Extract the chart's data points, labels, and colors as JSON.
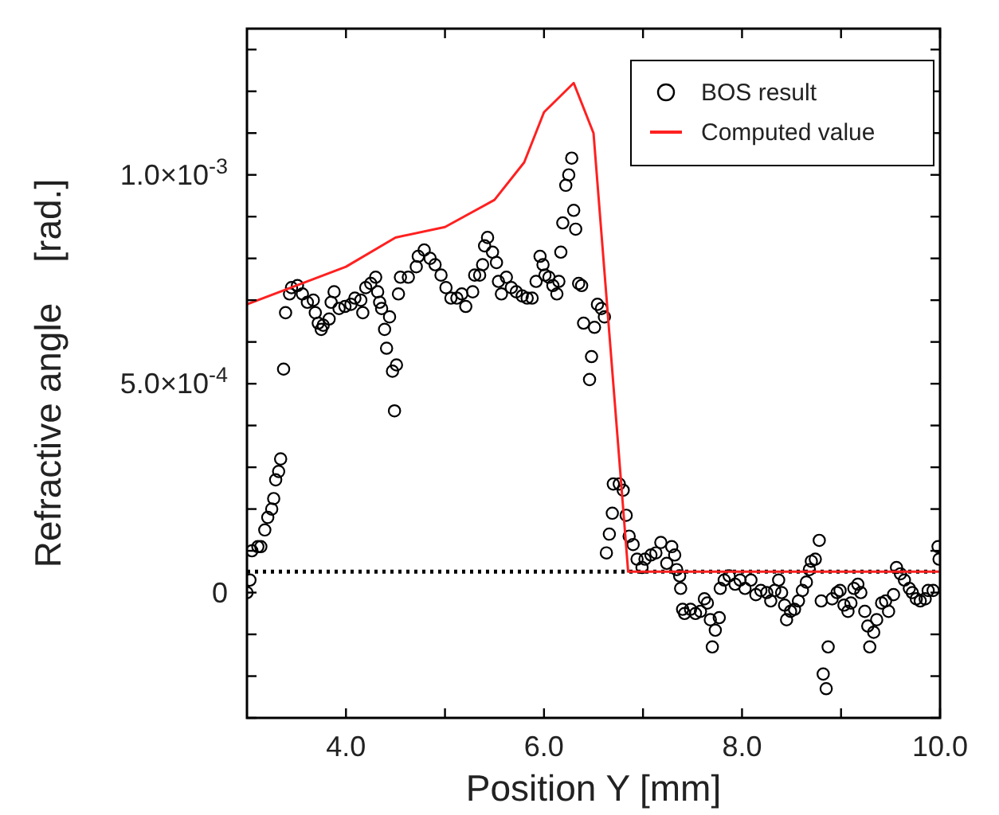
{
  "chart_data": {
    "type": "scatter",
    "xlabel": "Position Y [mm]",
    "ylabel": "Refractive angle    [rad.]",
    "xlim": [
      3,
      10
    ],
    "ylim": [
      -0.0003,
      0.00135
    ],
    "xticks": [
      {
        "value": 4,
        "label": "4.0"
      },
      {
        "value": 5,
        "label": null
      },
      {
        "value": 6,
        "label": "6.0"
      },
      {
        "value": 7,
        "label": null
      },
      {
        "value": 8,
        "label": "8.0"
      },
      {
        "value": 9,
        "label": null
      },
      {
        "value": 10,
        "label": "10.0"
      }
    ],
    "yticks": [
      {
        "value": -0.0003,
        "label": null
      },
      {
        "value": -0.0002,
        "label": null
      },
      {
        "value": -0.0001,
        "label": null
      },
      0,
      {
        "value": 0.0001,
        "label": null
      },
      {
        "value": 0.0002,
        "label": null
      },
      {
        "value": 0.0003,
        "label": null
      },
      {
        "value": 0.0004,
        "label": null
      },
      {
        "value": 0.0005,
        "label": "5.0×10$^{-4}$"
      },
      {
        "value": 0.0006,
        "label": null
      },
      {
        "value": 0.0007,
        "label": null
      },
      {
        "value": 0.0008,
        "label": null
      },
      {
        "value": 0.0009,
        "label": null
      },
      {
        "value": 0.001,
        "label": "1.0×10$^{-3}$"
      },
      {
        "value": 0.0011,
        "label": null
      },
      {
        "value": 0.0012,
        "label": null
      },
      {
        "value": 0.0013,
        "label": null
      }
    ],
    "legend": "top right",
    "grid": false,
    "ref_lines": [
      {
        "axis": "y",
        "value": 5e-05,
        "color": "#000000",
        "line_style": "dotted"
      }
    ],
    "series": [
      {
        "name": "BOS result",
        "marker": "circle",
        "color": "#000000",
        "x": [
          3.0,
          3.03,
          3.05,
          3.11,
          3.14,
          3.18,
          3.21,
          3.25,
          3.27,
          3.29,
          3.32,
          3.34,
          3.37,
          3.39,
          3.43,
          3.45,
          3.51,
          3.56,
          3.61,
          3.67,
          3.69,
          3.72,
          3.75,
          3.77,
          3.83,
          3.85,
          3.88,
          3.93,
          3.99,
          4.05,
          4.09,
          4.15,
          4.17,
          4.2,
          4.25,
          4.3,
          4.32,
          4.34,
          4.36,
          4.39,
          4.41,
          4.44,
          4.47,
          4.49,
          4.51,
          4.53,
          4.55,
          4.63,
          4.71,
          4.73,
          4.79,
          4.85,
          4.9,
          4.96,
          5.01,
          5.06,
          5.12,
          5.17,
          5.21,
          5.28,
          5.3,
          5.35,
          5.38,
          5.4,
          5.43,
          5.48,
          5.52,
          5.54,
          5.57,
          5.62,
          5.67,
          5.72,
          5.78,
          5.83,
          5.88,
          5.92,
          5.96,
          5.99,
          6.01,
          6.05,
          6.09,
          6.13,
          6.15,
          6.17,
          6.19,
          6.22,
          6.25,
          6.28,
          6.3,
          6.32,
          6.35,
          6.38,
          6.4,
          6.46,
          6.48,
          6.51,
          6.54,
          6.58,
          6.61,
          6.63,
          6.66,
          6.69,
          6.7,
          6.76,
          6.8,
          6.83,
          6.86,
          6.9,
          6.94,
          6.99,
          7.02,
          7.08,
          7.13,
          7.18,
          7.24,
          7.29,
          7.32,
          7.34,
          7.37,
          7.38,
          7.4,
          7.42,
          7.48,
          7.53,
          7.58,
          7.62,
          7.65,
          7.68,
          7.7,
          7.73,
          7.77,
          7.78,
          7.82,
          7.87,
          7.93,
          7.98,
          8.03,
          8.09,
          8.14,
          8.19,
          8.25,
          8.29,
          8.33,
          8.37,
          8.4,
          8.43,
          8.45,
          8.49,
          8.53,
          8.57,
          8.61,
          8.65,
          8.68,
          8.7,
          8.74,
          8.78,
          8.8,
          8.82,
          8.85,
          8.87,
          8.91,
          8.96,
          8.99,
          9.03,
          9.07,
          9.1,
          9.13,
          9.17,
          9.2,
          9.24,
          9.27,
          9.29,
          9.33,
          9.36,
          9.41,
          9.45,
          9.48,
          9.53,
          9.56,
          9.6,
          9.64,
          9.69,
          9.72,
          9.76,
          9.8,
          9.85,
          9.88,
          9.93,
          9.98,
          9.99
        ],
        "values": [
          0,
          3e-05,
          0.0001,
          0.00011,
          0.00011,
          0.00015,
          0.00018,
          0.0002,
          0.000225,
          0.00027,
          0.00029,
          0.00032,
          0.000535,
          0.00067,
          0.000715,
          0.00073,
          0.000735,
          0.000715,
          0.000695,
          0.0007,
          0.00067,
          0.000645,
          0.00063,
          0.00064,
          0.000655,
          0.000695,
          0.00072,
          0.00068,
          0.000685,
          0.00069,
          0.000705,
          0.0007,
          0.00067,
          0.00073,
          0.00074,
          0.000755,
          0.00072,
          0.000695,
          0.00068,
          0.00063,
          0.000585,
          0.00066,
          0.00053,
          0.000435,
          0.000545,
          0.000715,
          0.000755,
          0.000755,
          0.00078,
          0.000805,
          0.00082,
          0.0008,
          0.000785,
          0.00076,
          0.00073,
          0.000705,
          0.000705,
          0.000715,
          0.000685,
          0.00072,
          0.00076,
          0.00076,
          0.000785,
          0.00083,
          0.00085,
          0.000815,
          0.00079,
          0.000745,
          0.000715,
          0.000755,
          0.00073,
          0.00072,
          0.00071,
          0.000705,
          0.000705,
          0.000745,
          0.000805,
          0.000785,
          0.00076,
          0.000755,
          0.000735,
          0.000715,
          0.000745,
          0.000815,
          0.000885,
          0.000975,
          0.001,
          0.00104,
          0.000915,
          0.00087,
          0.00074,
          0.000735,
          0.000645,
          0.00051,
          0.000565,
          0.000635,
          0.00069,
          0.00068,
          0.00066,
          9.5e-05,
          0.00014,
          0.00019,
          0.00026,
          0.00026,
          0.000245,
          0.000185,
          0.000135,
          0.000115,
          8e-05,
          6e-05,
          8e-05,
          9e-05,
          9.5e-05,
          0.00012,
          7e-05,
          0.00011,
          9e-05,
          5.5e-05,
          4e-05,
          1e-05,
          -4e-05,
          -5e-05,
          -4e-05,
          -5e-05,
          -4.5e-05,
          -1.5e-05,
          -2.5e-05,
          -6.5e-05,
          -0.00013,
          -9e-05,
          -6e-05,
          1e-05,
          3e-05,
          4e-05,
          2e-05,
          3e-05,
          1e-05,
          3e-05,
          -5e-06,
          5e-06,
          0,
          -2e-05,
          5e-06,
          3e-05,
          0,
          -3e-05,
          -6.5e-05,
          -4.5e-05,
          -4e-05,
          -2e-05,
          5e-06,
          2.5e-05,
          5.5e-05,
          7.5e-05,
          8e-05,
          0.000125,
          -2e-05,
          -0.000195,
          -0.00023,
          -0.00013,
          -1.5e-05,
          0,
          5e-06,
          -3e-05,
          -4.5e-05,
          -2.5e-05,
          1e-05,
          2e-05,
          0,
          -4.5e-05,
          -8e-05,
          -0.00013,
          -9.5e-05,
          -6.5e-05,
          -2.5e-05,
          -2e-05,
          -4.5e-05,
          -5e-06,
          6e-05,
          4.5e-05,
          3e-05,
          1e-05,
          0,
          -1.5e-05,
          -2e-05,
          -1.5e-05,
          5e-06,
          5e-06,
          0.00011,
          8e-05
        ]
      },
      {
        "name": "Computed value",
        "type": "line",
        "marker": "none",
        "line_style": "solid",
        "color": "#ff2020",
        "x": [
          3.0,
          4.0,
          4.5,
          5.0,
          5.5,
          5.8,
          6.0,
          6.3,
          6.5,
          6.85,
          10.0
        ],
        "values": [
          0.00069,
          0.00078,
          0.00085,
          0.000875,
          0.00094,
          0.00103,
          0.00115,
          0.00122,
          0.0011,
          5e-05,
          5e-05
        ]
      }
    ]
  }
}
